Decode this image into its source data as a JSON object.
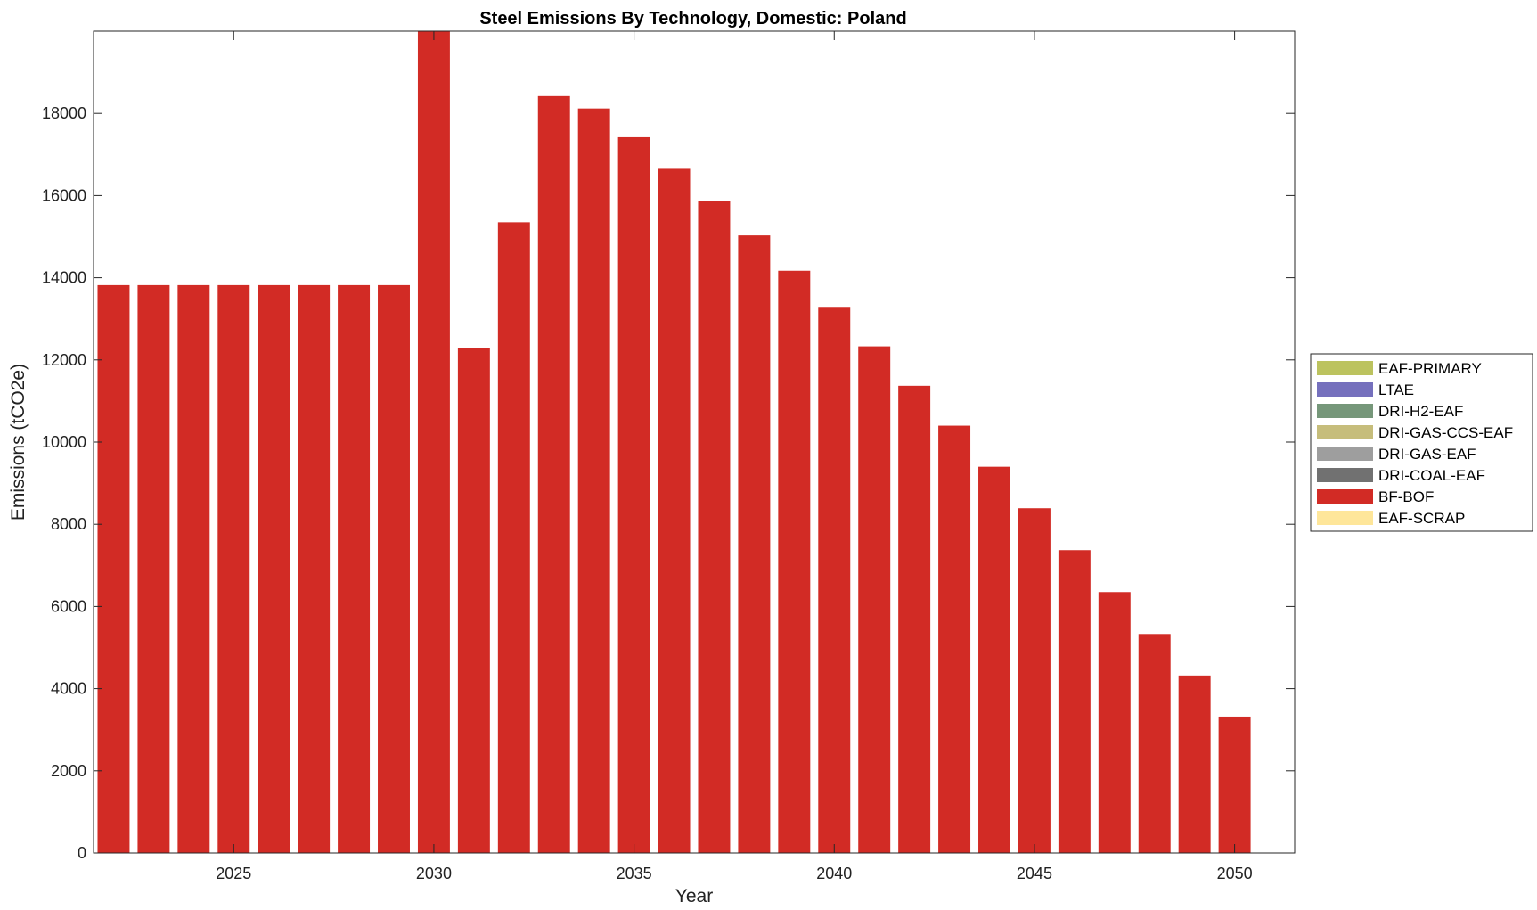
{
  "chart_data": {
    "type": "bar",
    "stacked": true,
    "title": "Steel Emissions By Technology, Domestic: Poland",
    "xlabel": "Year",
    "ylabel": "Emissions (tCO2e)",
    "xlim": [
      2021.5,
      2051.5
    ],
    "ylim": [
      0,
      20000
    ],
    "x_ticks": [
      2025,
      2030,
      2035,
      2040,
      2045,
      2050
    ],
    "y_ticks": [
      0,
      2000,
      4000,
      6000,
      8000,
      10000,
      12000,
      14000,
      16000,
      18000
    ],
    "legend_position": "right",
    "x": [
      2022,
      2023,
      2024,
      2025,
      2026,
      2027,
      2028,
      2029,
      2030,
      2031,
      2032,
      2033,
      2034,
      2035,
      2036,
      2037,
      2038,
      2039,
      2040,
      2041,
      2042,
      2043,
      2044,
      2045,
      2046,
      2047,
      2048,
      2049,
      2050
    ],
    "series": [
      {
        "name": "EAF-PRIMARY",
        "color": "#bcc35f",
        "values": [
          0,
          0,
          0,
          0,
          0,
          0,
          0,
          0,
          0,
          0,
          0,
          0,
          0,
          0,
          0,
          0,
          0,
          0,
          0,
          0,
          0,
          0,
          0,
          0,
          0,
          0,
          0,
          0,
          0
        ]
      },
      {
        "name": "LTAE",
        "color": "#7570bd",
        "values": [
          0,
          0,
          0,
          0,
          0,
          0,
          0,
          0,
          0,
          0,
          0,
          0,
          0,
          0,
          0,
          0,
          0,
          0,
          0,
          0,
          0,
          0,
          0,
          0,
          0,
          0,
          0,
          0,
          0
        ]
      },
      {
        "name": "DRI-H2-EAF",
        "color": "#76977a",
        "values": [
          0,
          0,
          0,
          0,
          0,
          0,
          0,
          0,
          0,
          0,
          0,
          0,
          0,
          0,
          0,
          0,
          0,
          0,
          0,
          0,
          0,
          0,
          0,
          0,
          0,
          0,
          0,
          0,
          0
        ]
      },
      {
        "name": "DRI-GAS-CCS-EAF",
        "color": "#c6bd7b",
        "values": [
          0,
          0,
          0,
          0,
          0,
          0,
          0,
          0,
          0,
          0,
          0,
          0,
          0,
          0,
          0,
          0,
          0,
          0,
          0,
          0,
          0,
          0,
          0,
          0,
          0,
          0,
          0,
          0,
          0
        ]
      },
      {
        "name": "DRI-GAS-EAF",
        "color": "#9e9e9e",
        "values": [
          0,
          0,
          0,
          0,
          0,
          0,
          0,
          0,
          0,
          0,
          0,
          0,
          0,
          0,
          0,
          0,
          0,
          0,
          0,
          0,
          0,
          0,
          0,
          0,
          0,
          0,
          0,
          0,
          0
        ]
      },
      {
        "name": "DRI-COAL-EAF",
        "color": "#717171",
        "values": [
          0,
          0,
          0,
          0,
          0,
          0,
          0,
          0,
          0,
          0,
          0,
          0,
          0,
          0,
          0,
          0,
          0,
          0,
          0,
          0,
          0,
          0,
          0,
          0,
          0,
          0,
          0,
          0,
          0
        ]
      },
      {
        "name": "BF-BOF",
        "color": "#d22b25",
        "values": [
          13820,
          13820,
          13820,
          13820,
          13820,
          13820,
          13820,
          13820,
          20000,
          12280,
          15350,
          18420,
          18120,
          17420,
          16650,
          15860,
          15030,
          14170,
          13270,
          12330,
          11370,
          10400,
          9400,
          8390,
          7370,
          6350,
          5330,
          4320,
          3320
        ]
      },
      {
        "name": "EAF-SCRAP",
        "color": "#fee69a",
        "values": [
          0,
          0,
          0,
          0,
          0,
          0,
          0,
          0,
          0,
          0,
          0,
          0,
          0,
          0,
          0,
          0,
          0,
          0,
          0,
          0,
          0,
          0,
          0,
          0,
          0,
          0,
          0,
          0,
          0
        ]
      }
    ]
  }
}
